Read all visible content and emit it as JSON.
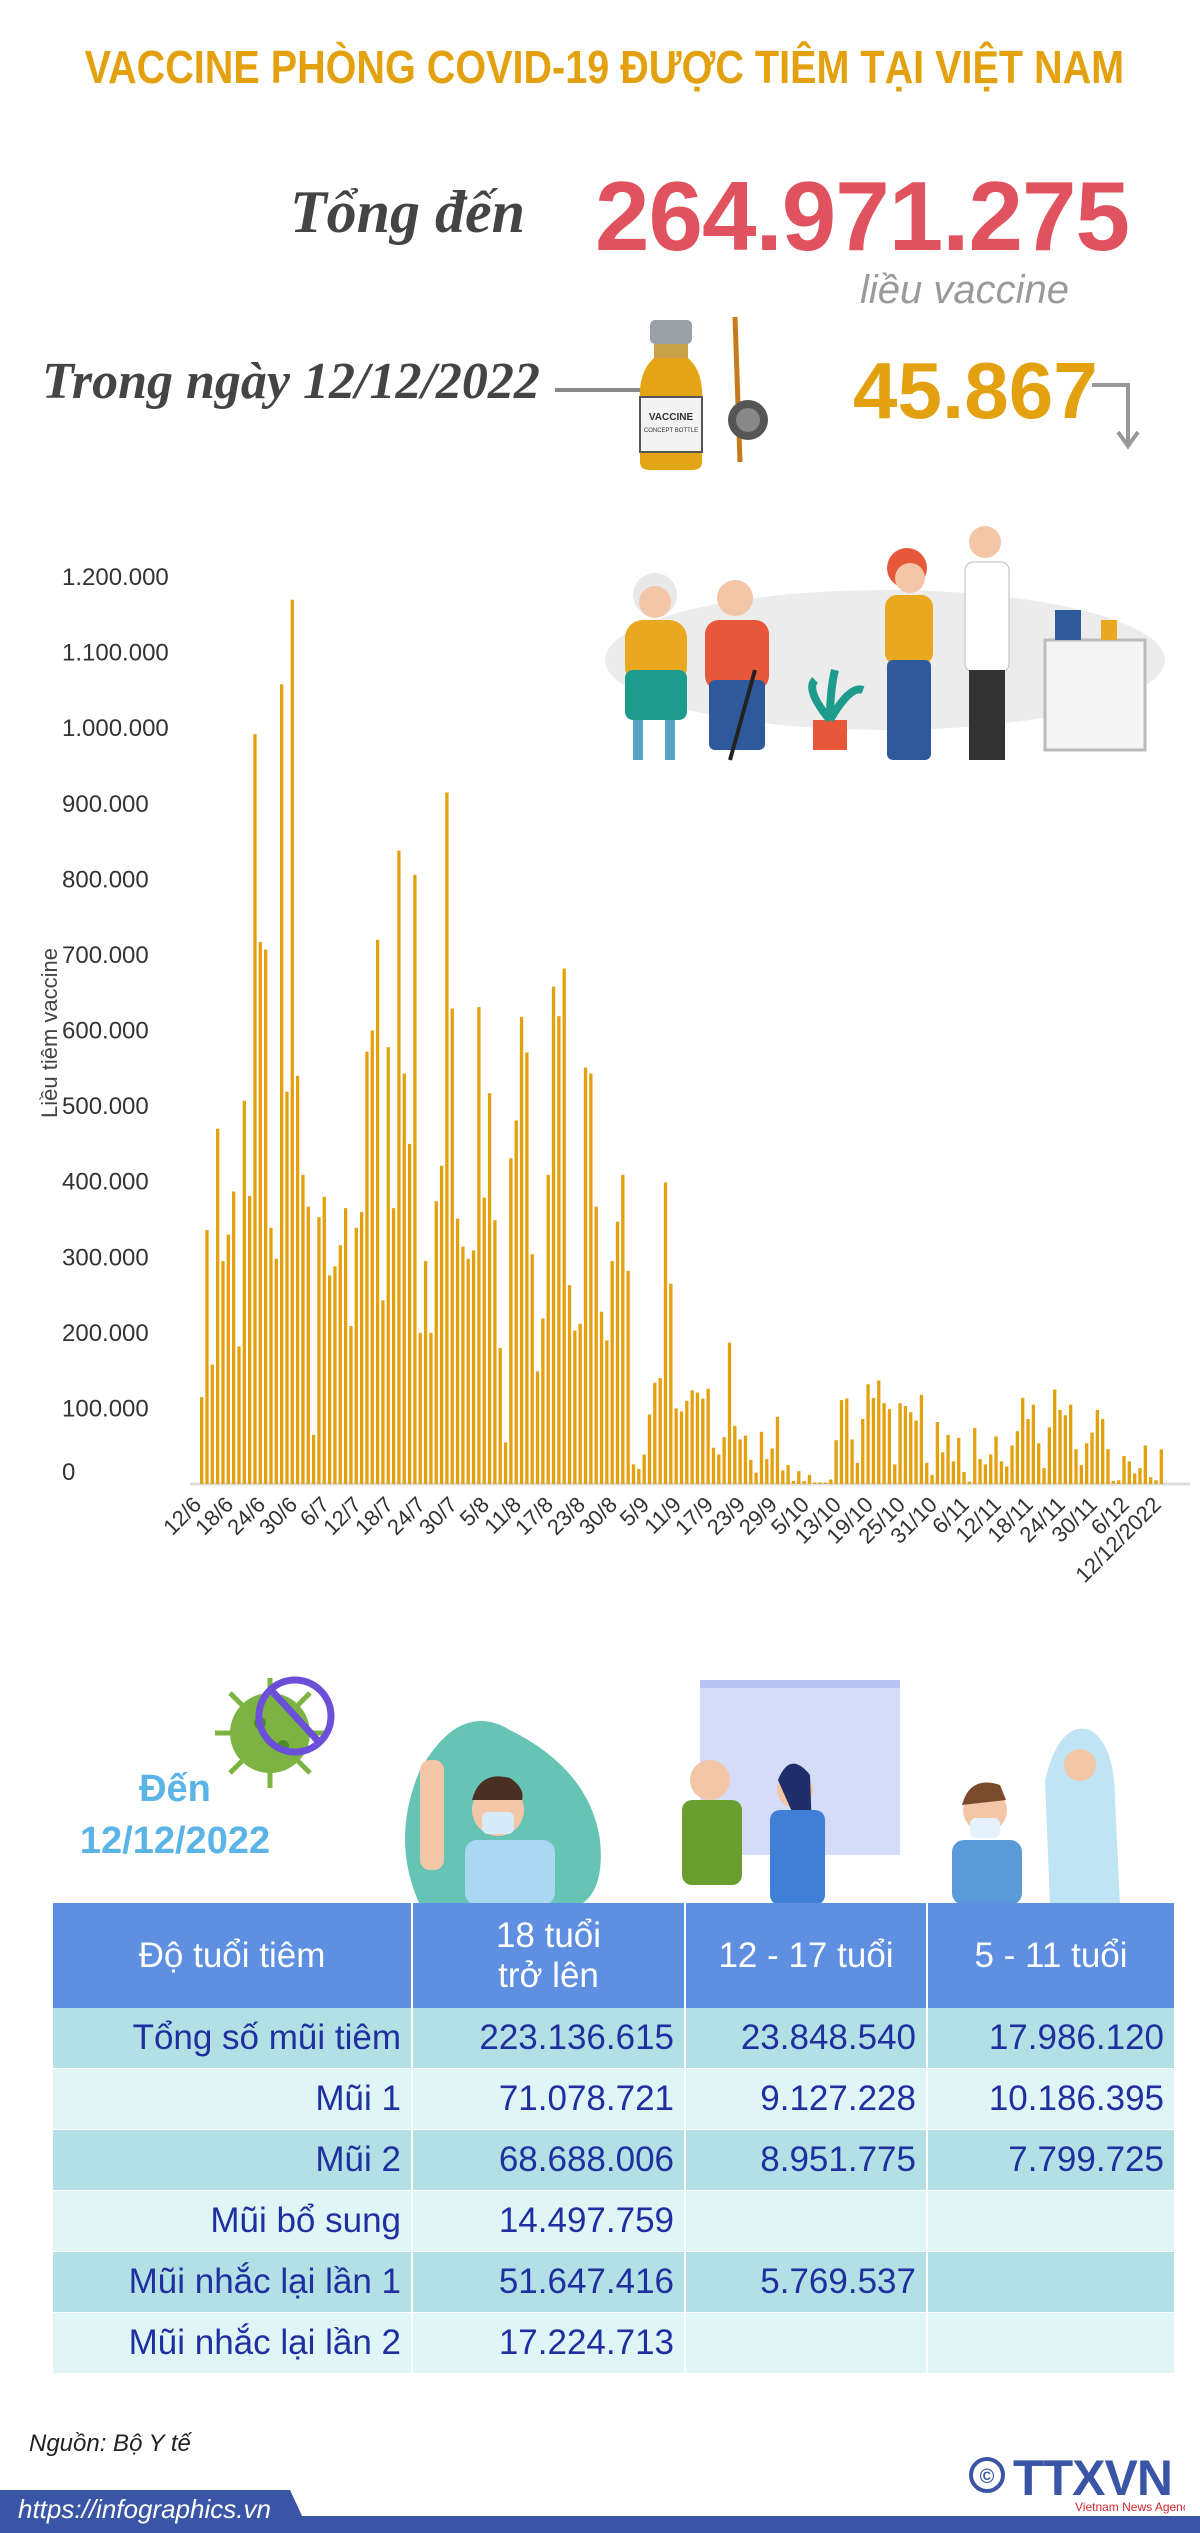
{
  "title": "VACCINE PHÒNG COVID-19 ĐƯỢC TIÊM TẠI VIỆT NAM",
  "summary": {
    "total_label": "Tổng đến",
    "total_value": "264.971.275",
    "total_unit": "liều vaccine",
    "day_label": "Trong ngày 12/12/2022",
    "day_value": "45.867",
    "vial_label": "VACCINE",
    "vial_sublabel": "CONCEPT BOTTLE"
  },
  "colors": {
    "title": "#e3a10f",
    "total": "#e0535e",
    "bar": "#e3a10f",
    "table_header": "#5f8fe0",
    "table_text": "#1f2fa0",
    "footer": "#3a55a5",
    "date_text": "#5ab4e5"
  },
  "chart_data": {
    "type": "bar",
    "ylabel": "Liều tiêm vaccine",
    "ylim": [
      0,
      1200000
    ],
    "y_ticks": [
      "0",
      "100.000",
      "200.000",
      "300.000",
      "400.000",
      "500.000",
      "600.000",
      "700.000",
      "800.000",
      "900.000",
      "1.000.000",
      "1.100.000",
      "1.200.000"
    ],
    "x_tick_labels": [
      "12/6",
      "18/6",
      "24/6",
      "30/6",
      "6/7",
      "12/7",
      "18/7",
      "24/7",
      "30/7",
      "5/8",
      "11/8",
      "17/8",
      "23/8",
      "30/8",
      "5/9",
      "11/9",
      "17/9",
      "23/9",
      "29/9",
      "5/10",
      "13/10",
      "19/10",
      "25/10",
      "31/10",
      "6/11",
      "12/11",
      "18/11",
      "24/11",
      "30/11",
      "6/12",
      "12/12/2022"
    ],
    "grid": false,
    "values": [
      115000,
      336000,
      158000,
      470000,
      295000,
      330000,
      387000,
      182000,
      507000,
      381000,
      992000,
      717000,
      707000,
      339000,
      298000,
      1058000,
      519000,
      1170000,
      540000,
      409000,
      367000,
      65000,
      353000,
      380000,
      276000,
      288000,
      316000,
      365000,
      209000,
      339000,
      360000,
      572000,
      600000,
      720000,
      243000,
      578000,
      365000,
      838000,
      543000,
      450000,
      806000,
      200000,
      295000,
      200000,
      374000,
      421000,
      915000,
      629000,
      351000,
      314000,
      298000,
      309000,
      631000,
      379000,
      517000,
      349000,
      180000,
      55000,
      431000,
      481000,
      618000,
      571000,
      304000,
      149000,
      219000,
      409000,
      658000,
      619000,
      682000,
      263000,
      203000,
      212000,
      551000,
      543000,
      367000,
      228000,
      190000,
      295000,
      347000,
      409000,
      282000,
      26000,
      20000,
      39000,
      92000,
      134000,
      140000,
      399000,
      265000,
      100000,
      96000,
      110000,
      124000,
      121000,
      113000,
      126000,
      48000,
      39000,
      62000,
      187000,
      77000,
      59000,
      64000,
      32000,
      15000,
      69000,
      33000,
      47000,
      89000,
      18000,
      25000,
      4000,
      17000,
      4000,
      12000,
      2000,
      2000,
      2000,
      6000,
      58000,
      111000,
      113000,
      59000,
      28000,
      86000,
      132000,
      114000,
      137000,
      107000,
      99000,
      26000,
      107000,
      103000,
      95000,
      84000,
      118000,
      28000,
      12000,
      82000,
      42000,
      65000,
      30000,
      61000,
      16000,
      3000,
      74000,
      33000,
      26000,
      39000,
      63000,
      30000,
      23000,
      51000,
      70000,
      114000,
      86000,
      105000,
      54000,
      21000,
      75000,
      125000,
      98000,
      91000,
      105000,
      46000,
      25000,
      54000,
      68000,
      98000,
      86000,
      46000,
      4000,
      5000,
      37000,
      30000,
      14000,
      21000,
      51000,
      9000,
      5000,
      45867
    ]
  },
  "section2": {
    "date_label_line1": "Đến",
    "date_label_line2": "12/12/2022"
  },
  "table": {
    "headers": [
      "Độ tuổi tiêm",
      "18 tuổi trở lên",
      "12 - 17 tuổi",
      "5 - 11 tuổi"
    ],
    "header_18_line1": "18 tuổi",
    "header_18_line2": "trở lên",
    "rows": [
      {
        "label": "Tổng số mũi tiêm",
        "c18": "223.136.615",
        "c12": "23.848.540",
        "c5": "17.986.120"
      },
      {
        "label": "Mũi 1",
        "c18": "71.078.721",
        "c12": "9.127.228",
        "c5": "10.186.395"
      },
      {
        "label": "Mũi 2",
        "c18": "68.688.006",
        "c12": "8.951.775",
        "c5": "7.799.725"
      },
      {
        "label": "Mũi bổ sung",
        "c18": "14.497.759",
        "c12": "",
        "c5": ""
      },
      {
        "label": "Mũi nhắc lại lần 1",
        "c18": "51.647.416",
        "c12": "5.769.537",
        "c5": ""
      },
      {
        "label": "Mũi nhắc lại lần 2",
        "c18": "17.224.713",
        "c12": "",
        "c5": ""
      }
    ]
  },
  "footer": {
    "source": "Nguồn: Bộ Y tế",
    "url": "https://infographics.vn",
    "logo_text": "TTXVN",
    "logo_sub": "Vietnam News Agency",
    "copyright": "©"
  }
}
